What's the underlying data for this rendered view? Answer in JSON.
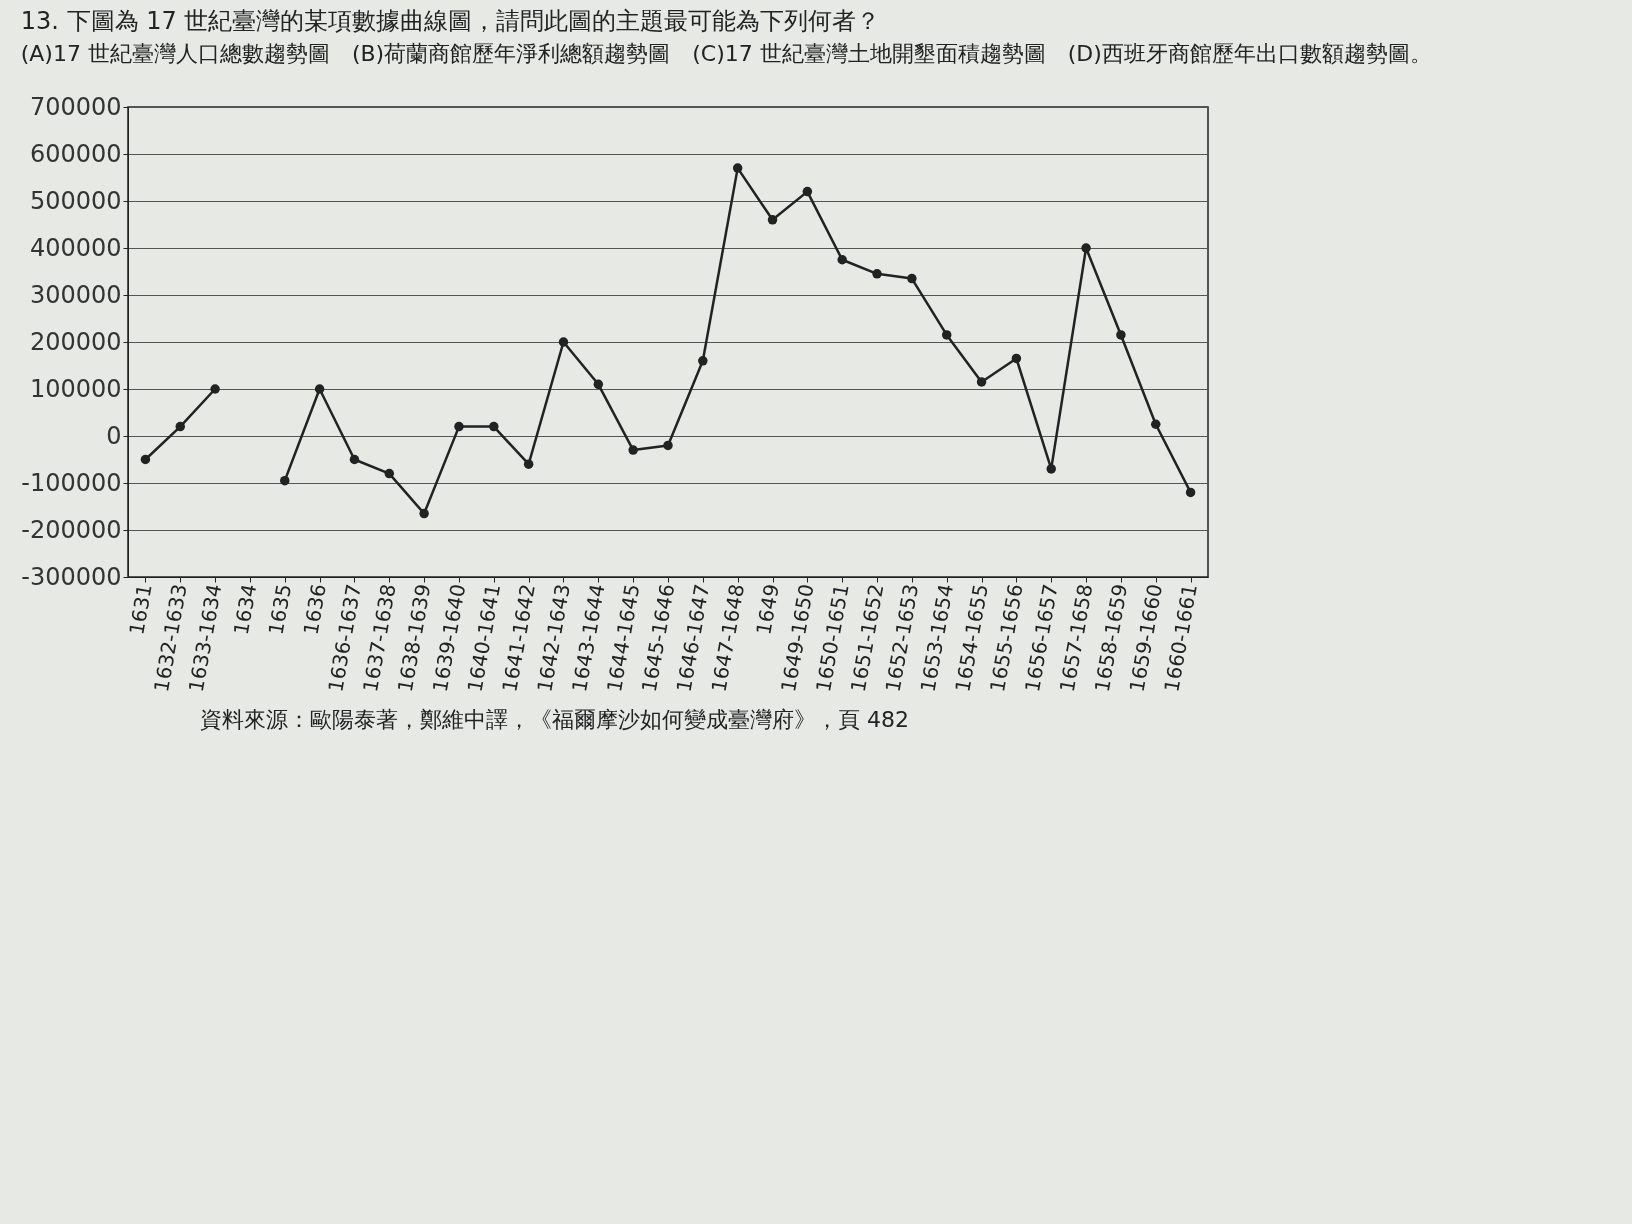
{
  "chart_data": {
    "type": "line",
    "title": "13. 下圖為 17 世紀臺灣的某項數據曲線圖，請問此圖的主題最可能為下列何者？",
    "subtitle": "(A)17 世紀臺灣人口總數趨勢圖　(B)荷蘭商館歷年淨利總額趨勢圖　(C)17 世紀臺灣土地開墾面積趨勢圖　(D)西班牙商館歷年出口數額趨勢圖。",
    "categories": [
      "1631",
      "1632-1633",
      "1633-1634",
      "1634",
      "1635",
      "1636",
      "1636-1637",
      "1637-1638",
      "1638-1639",
      "1639-1640",
      "1640-1641",
      "1641-1642",
      "1642-1643",
      "1643-1644",
      "1644-1645",
      "1645-1646",
      "1646-1647",
      "1647-1648",
      "1649",
      "1649-1650",
      "1650-1651",
      "1651-1652",
      "1652-1653",
      "1653-1654",
      "1654-1655",
      "1655-1656",
      "1656-1657",
      "1657-1658",
      "1658-1659",
      "1659-1660",
      "1660-1661"
    ],
    "series": [
      {
        "color": "#222222",
        "values": [
          -50000,
          20000,
          100000,
          null,
          -95000,
          100000,
          -50000,
          -80000,
          -165000,
          20000,
          20000,
          -60000,
          200000,
          110000,
          -30000,
          -20000,
          160000,
          570000,
          460000,
          520000,
          375000,
          345000,
          335000,
          215000,
          115000,
          165000,
          -70000,
          400000,
          215000,
          25000,
          -120000
        ]
      }
    ],
    "ylim": [
      -300000,
      700000
    ],
    "yticks": [
      -300000,
      -200000,
      -100000,
      0,
      100000,
      200000,
      300000,
      400000,
      500000,
      600000,
      700000
    ],
    "grid": "y",
    "marker": "circle",
    "annotations": [
      "資料來源：歐陽泰著，鄭維中譯，《福爾摩沙如何變成臺灣府》，頁 482"
    ]
  }
}
